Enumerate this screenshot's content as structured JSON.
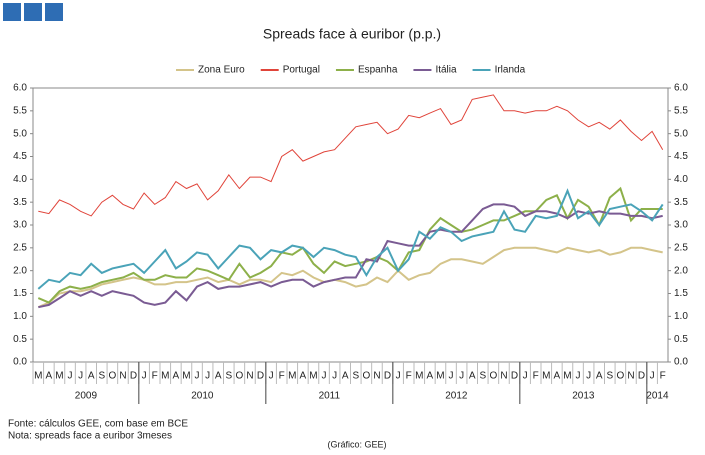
{
  "chart_data": {
    "type": "line",
    "title": "Spreads face à euribor (p.p.)",
    "categories": [
      "M",
      "A",
      "M",
      "J",
      "J",
      "A",
      "S",
      "O",
      "N",
      "D",
      "J",
      "F",
      "M",
      "A",
      "M",
      "J",
      "J",
      "A",
      "S",
      "O",
      "N",
      "D",
      "J",
      "F",
      "M",
      "A",
      "M",
      "J",
      "J",
      "A",
      "S",
      "O",
      "N",
      "D",
      "J",
      "F",
      "M",
      "A",
      "M",
      "J",
      "J",
      "A",
      "S",
      "O",
      "N",
      "D",
      "J",
      "F",
      "M",
      "A",
      "M",
      "J",
      "J",
      "A",
      "S",
      "O",
      "N",
      "D",
      "J",
      "F"
    ],
    "years": [
      "2009",
      "2010",
      "2011",
      "2012",
      "2013",
      "2014"
    ],
    "ylim": [
      0,
      6
    ],
    "yticks": [
      {
        "value": 0,
        "label": "0.0"
      },
      {
        "value": 0.5,
        "label": "0.5"
      },
      {
        "value": 1,
        "label": "1.0"
      },
      {
        "value": 1.5,
        "label": "1.5"
      },
      {
        "value": 2,
        "label": "2.0"
      },
      {
        "value": 2.5,
        "label": "2.5"
      },
      {
        "value": 3,
        "label": "3.0"
      },
      {
        "value": 3.5,
        "label": "3.5"
      },
      {
        "value": 4,
        "label": "4.0"
      },
      {
        "value": 4.5,
        "label": "4.5"
      },
      {
        "value": 5,
        "label": "5.0"
      },
      {
        "value": 5.5,
        "label": "5.5"
      },
      {
        "value": 6,
        "label": "6.0"
      }
    ],
    "y2lim": [
      0,
      6
    ],
    "y2ticks": [
      {
        "value": 0,
        "label": "0.0"
      },
      {
        "value": 0.5,
        "label": "0.5"
      },
      {
        "value": 1,
        "label": "1.0"
      },
      {
        "value": 1.5,
        "label": "1.5"
      },
      {
        "value": 2,
        "label": "2.0"
      },
      {
        "value": 2.5,
        "label": "2.5"
      },
      {
        "value": 3,
        "label": "3.0"
      },
      {
        "value": 3.5,
        "label": "3.5"
      },
      {
        "value": 4,
        "label": "4.0"
      },
      {
        "value": 4.5,
        "label": "4.5"
      },
      {
        "value": 5,
        "label": "5.0"
      },
      {
        "value": 5.5,
        "label": "5.5"
      },
      {
        "value": 6,
        "label": "6.0"
      }
    ],
    "legend": "top",
    "grid": false,
    "series": [
      {
        "name": "Zona Euro",
        "color": "#d4c48a",
        "values": [
          1.2,
          1.3,
          1.5,
          1.55,
          1.55,
          1.6,
          1.7,
          1.75,
          1.8,
          1.85,
          1.8,
          1.7,
          1.7,
          1.75,
          1.75,
          1.8,
          1.85,
          1.75,
          1.8,
          1.7,
          1.8,
          1.8,
          1.75,
          1.95,
          1.9,
          2.0,
          1.85,
          1.75,
          1.8,
          1.75,
          1.65,
          1.7,
          1.85,
          1.75,
          2.0,
          1.8,
          1.9,
          1.95,
          2.15,
          2.25,
          2.25,
          2.2,
          2.15,
          2.3,
          2.45,
          2.5,
          2.5,
          2.5,
          2.45,
          2.4,
          2.5,
          2.45,
          2.4,
          2.45,
          2.35,
          2.4,
          2.5,
          2.5,
          2.45,
          2.4
        ]
      },
      {
        "name": "Portugal",
        "color": "#e0443a",
        "values": [
          3.3,
          3.25,
          3.55,
          3.45,
          3.3,
          3.2,
          3.5,
          3.65,
          3.45,
          3.35,
          3.7,
          3.45,
          3.6,
          3.95,
          3.8,
          3.9,
          3.55,
          3.75,
          4.1,
          3.8,
          4.05,
          4.05,
          3.95,
          4.5,
          4.65,
          4.4,
          4.5,
          4.6,
          4.65,
          4.9,
          5.15,
          5.2,
          5.25,
          5.0,
          5.1,
          5.4,
          5.35,
          5.45,
          5.55,
          5.2,
          5.3,
          5.75,
          5.8,
          5.85,
          5.5,
          5.5,
          5.45,
          5.5,
          5.5,
          5.6,
          5.5,
          5.3,
          5.15,
          5.25,
          5.1,
          5.3,
          5.05,
          4.85,
          5.05,
          4.65
        ]
      },
      {
        "name": "Espanha",
        "color": "#8db04a",
        "values": [
          1.4,
          1.3,
          1.55,
          1.65,
          1.6,
          1.65,
          1.75,
          1.8,
          1.85,
          1.95,
          1.8,
          1.8,
          1.9,
          1.85,
          1.85,
          2.05,
          2.0,
          1.9,
          1.8,
          2.15,
          1.85,
          1.95,
          2.1,
          2.4,
          2.35,
          2.5,
          2.15,
          1.95,
          2.2,
          2.1,
          2.15,
          2.2,
          2.3,
          2.2,
          2.0,
          2.4,
          2.45,
          2.9,
          3.15,
          3.0,
          2.85,
          2.9,
          3.0,
          3.1,
          3.1,
          3.2,
          3.3,
          3.3,
          3.55,
          3.65,
          3.15,
          3.55,
          3.4,
          3.0,
          3.6,
          3.8,
          3.1,
          3.35,
          3.35,
          3.35
        ]
      },
      {
        "name": "Itália",
        "color": "#7a5b93",
        "values": [
          1.2,
          1.25,
          1.4,
          1.55,
          1.45,
          1.55,
          1.45,
          1.55,
          1.5,
          1.45,
          1.3,
          1.25,
          1.3,
          1.55,
          1.35,
          1.65,
          1.75,
          1.6,
          1.65,
          1.65,
          1.7,
          1.75,
          1.65,
          1.75,
          1.8,
          1.8,
          1.65,
          1.75,
          1.8,
          1.85,
          1.85,
          2.25,
          2.2,
          2.65,
          2.6,
          2.55,
          2.55,
          2.85,
          2.9,
          2.85,
          2.85,
          3.1,
          3.35,
          3.45,
          3.45,
          3.4,
          3.2,
          3.3,
          3.3,
          3.25,
          3.15,
          3.3,
          3.25,
          3.3,
          3.25,
          3.25,
          3.2,
          3.2,
          3.15,
          3.2
        ]
      },
      {
        "name": "Irlanda",
        "color": "#4aa3b8",
        "values": [
          1.6,
          1.8,
          1.75,
          1.95,
          1.9,
          2.15,
          1.95,
          2.05,
          2.1,
          2.15,
          1.95,
          2.2,
          2.45,
          2.05,
          2.2,
          2.4,
          2.35,
          2.05,
          2.3,
          2.55,
          2.5,
          2.25,
          2.45,
          2.4,
          2.55,
          2.5,
          2.3,
          2.5,
          2.45,
          2.35,
          2.3,
          1.9,
          2.3,
          2.5,
          2.0,
          2.25,
          2.85,
          2.7,
          2.95,
          2.85,
          2.65,
          2.75,
          2.8,
          2.85,
          3.3,
          2.9,
          2.85,
          3.2,
          3.15,
          3.2,
          3.75,
          3.15,
          3.3,
          3.0,
          3.35,
          3.4,
          3.45,
          3.3,
          3.1,
          3.45
        ]
      }
    ]
  },
  "notes": {
    "source": "Fonte: cálculos GEE, com base em BCE",
    "note": "Nota: spreads face a euribor 3meses",
    "credit": "(Gráfico: GEE)"
  }
}
